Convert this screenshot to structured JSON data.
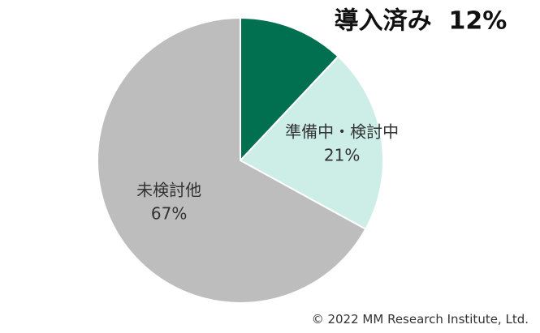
{
  "chart_data": {
    "type": "pie",
    "start_angle_deg": 0,
    "direction": "clockwise",
    "slices": [
      {
        "label": "導入済み",
        "value": 12,
        "value_label": "12%",
        "color": "#007050",
        "label_position": "outside"
      },
      {
        "label": "準備中・検討中",
        "value": 21,
        "value_label": "21%",
        "color": "#cdeee6",
        "label_position": "inside"
      },
      {
        "label": "未検討他",
        "value": 67,
        "value_label": "67%",
        "color": "#bdbdbd",
        "label_position": "inside"
      }
    ]
  },
  "footer": {
    "copyright": "© 2022 MM Research Institute, Ltd."
  }
}
